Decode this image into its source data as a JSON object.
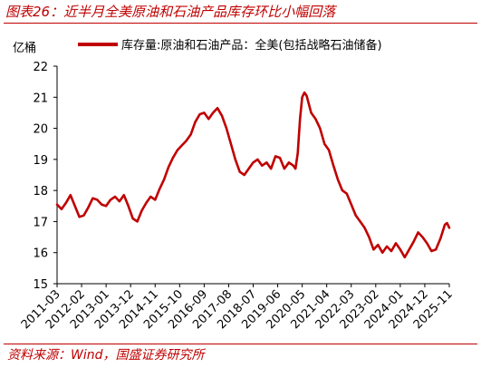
{
  "figure_title": "图表26：近半月全美原油和石油产品库存环比小幅回落",
  "source_note": "资料来源：Wind，国盛证券研究所",
  "colors": {
    "series": "#c00000",
    "title": "#c00000",
    "axis": "#000000"
  },
  "chart_data": {
    "type": "line",
    "ylabel": "亿桶",
    "ylim": [
      15,
      22
    ],
    "yticks": [
      15,
      16,
      17,
      18,
      19,
      20,
      21,
      22
    ],
    "xlim": [
      "2011-03",
      "2025-11"
    ],
    "xticks": [
      "2011-03",
      "2012-02",
      "2013-01",
      "2013-12",
      "2014-11",
      "2015-10",
      "2016-09",
      "2017-08",
      "2018-07",
      "2019-06",
      "2020-05",
      "2021-04",
      "2022-03",
      "2023-02",
      "2024-01",
      "2024-12",
      "2025-11"
    ],
    "legend_position": "top",
    "grid": false,
    "series": [
      {
        "name": "库存量:原油和石油产品：全美(包括战略石油储备)",
        "points": [
          [
            "2011-03",
            17.55
          ],
          [
            "2011-05",
            17.4
          ],
          [
            "2011-07",
            17.6
          ],
          [
            "2011-09",
            17.85
          ],
          [
            "2011-11",
            17.5
          ],
          [
            "2012-01",
            17.15
          ],
          [
            "2012-03",
            17.2
          ],
          [
            "2012-05",
            17.45
          ],
          [
            "2012-07",
            17.75
          ],
          [
            "2012-09",
            17.7
          ],
          [
            "2012-11",
            17.55
          ],
          [
            "2013-01",
            17.5
          ],
          [
            "2013-03",
            17.7
          ],
          [
            "2013-05",
            17.8
          ],
          [
            "2013-07",
            17.65
          ],
          [
            "2013-09",
            17.85
          ],
          [
            "2013-11",
            17.5
          ],
          [
            "2014-01",
            17.1
          ],
          [
            "2014-03",
            17.0
          ],
          [
            "2014-05",
            17.35
          ],
          [
            "2014-07",
            17.6
          ],
          [
            "2014-09",
            17.8
          ],
          [
            "2014-11",
            17.7
          ],
          [
            "2015-01",
            18.05
          ],
          [
            "2015-03",
            18.35
          ],
          [
            "2015-05",
            18.75
          ],
          [
            "2015-07",
            19.05
          ],
          [
            "2015-09",
            19.3
          ],
          [
            "2015-11",
            19.45
          ],
          [
            "2016-01",
            19.6
          ],
          [
            "2016-03",
            19.8
          ],
          [
            "2016-05",
            20.2
          ],
          [
            "2016-07",
            20.45
          ],
          [
            "2016-09",
            20.5
          ],
          [
            "2016-11",
            20.3
          ],
          [
            "2017-01",
            20.5
          ],
          [
            "2017-03",
            20.65
          ],
          [
            "2017-05",
            20.4
          ],
          [
            "2017-07",
            20.0
          ],
          [
            "2017-09",
            19.5
          ],
          [
            "2017-11",
            19.0
          ],
          [
            "2018-01",
            18.6
          ],
          [
            "2018-03",
            18.5
          ],
          [
            "2018-05",
            18.7
          ],
          [
            "2018-07",
            18.9
          ],
          [
            "2018-09",
            19.0
          ],
          [
            "2018-11",
            18.8
          ],
          [
            "2019-01",
            18.9
          ],
          [
            "2019-03",
            18.7
          ],
          [
            "2019-05",
            19.1
          ],
          [
            "2019-07",
            19.05
          ],
          [
            "2019-09",
            18.7
          ],
          [
            "2019-11",
            18.9
          ],
          [
            "2020-01",
            18.8
          ],
          [
            "2020-02",
            18.7
          ],
          [
            "2020-03",
            19.2
          ],
          [
            "2020-04",
            20.3
          ],
          [
            "2020-05",
            21.0
          ],
          [
            "2020-06",
            21.15
          ],
          [
            "2020-07",
            21.05
          ],
          [
            "2020-09",
            20.5
          ],
          [
            "2020-11",
            20.3
          ],
          [
            "2021-01",
            20.0
          ],
          [
            "2021-03",
            19.5
          ],
          [
            "2021-05",
            19.3
          ],
          [
            "2021-07",
            18.8
          ],
          [
            "2021-09",
            18.35
          ],
          [
            "2021-11",
            18.0
          ],
          [
            "2022-01",
            17.9
          ],
          [
            "2022-03",
            17.55
          ],
          [
            "2022-05",
            17.2
          ],
          [
            "2022-07",
            17.0
          ],
          [
            "2022-09",
            16.8
          ],
          [
            "2022-11",
            16.5
          ],
          [
            "2023-01",
            16.1
          ],
          [
            "2023-03",
            16.25
          ],
          [
            "2023-05",
            16.0
          ],
          [
            "2023-07",
            16.2
          ],
          [
            "2023-09",
            16.05
          ],
          [
            "2023-11",
            16.3
          ],
          [
            "2024-01",
            16.1
          ],
          [
            "2024-03",
            15.85
          ],
          [
            "2024-05",
            16.1
          ],
          [
            "2024-07",
            16.35
          ],
          [
            "2024-09",
            16.65
          ],
          [
            "2024-11",
            16.5
          ],
          [
            "2025-01",
            16.3
          ],
          [
            "2025-03",
            16.05
          ],
          [
            "2025-05",
            16.1
          ],
          [
            "2025-07",
            16.45
          ],
          [
            "2025-09",
            16.9
          ],
          [
            "2025-10",
            16.95
          ],
          [
            "2025-11",
            16.8
          ]
        ]
      }
    ]
  }
}
